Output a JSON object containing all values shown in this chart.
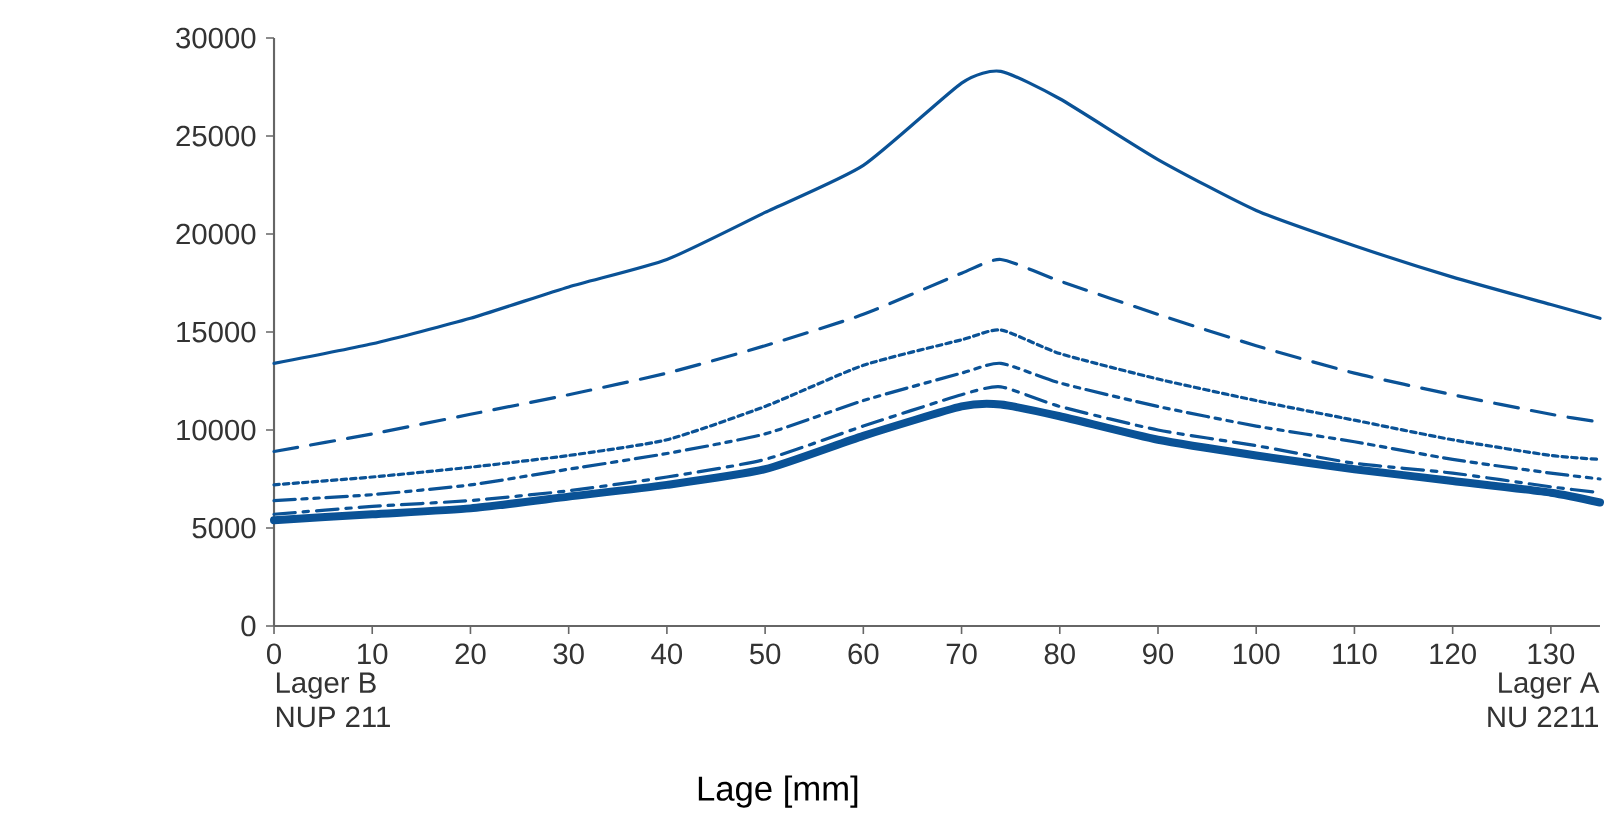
{
  "chart_data": {
    "type": "line",
    "xlabel": "Lage [mm]",
    "x": [
      0,
      10,
      20,
      30,
      40,
      50,
      60,
      70,
      74,
      80,
      90,
      100,
      110,
      120,
      130,
      135
    ],
    "series": [
      {
        "color": "#0a5296",
        "line_style": "solid",
        "values": [
          13400,
          14400,
          15700,
          17300,
          18700,
          21100,
          23500,
          27700,
          28300,
          26900,
          23800,
          21200,
          19400,
          17800,
          16400,
          15700
        ]
      },
      {
        "color": "#0a5296",
        "line_style": "dashed",
        "values": [
          8900,
          9800,
          10800,
          11800,
          12900,
          14300,
          15900,
          18000,
          18700,
          17600,
          15900,
          14300,
          12900,
          11800,
          10800,
          10400
        ]
      },
      {
        "color": "#0a5296",
        "line_style": "dotted",
        "values": [
          7200,
          7600,
          8100,
          8700,
          9500,
          11200,
          13300,
          14600,
          15100,
          13900,
          12600,
          11500,
          10500,
          9500,
          8700,
          8500
        ]
      },
      {
        "color": "#0a5296",
        "line_style": "dashdotdotted",
        "values": [
          6400,
          6700,
          7200,
          8000,
          8800,
          9800,
          11500,
          12900,
          13400,
          12400,
          11200,
          10200,
          9400,
          8500,
          7800,
          7500
        ]
      },
      {
        "color": "#0a5296",
        "line_style": "dashdotted",
        "values": [
          5700,
          6100,
          6400,
          6900,
          7600,
          8500,
          10200,
          11800,
          12200,
          11200,
          10000,
          9200,
          8300,
          7800,
          7100,
          6800
        ]
      },
      {
        "color": "#0a5296",
        "line_style": "solid",
        "values": [
          5400,
          5700,
          6000,
          6600,
          7200,
          8000,
          9700,
          11200,
          11300,
          10700,
          9500,
          8700,
          8000,
          7400,
          6800,
          6300
        ]
      }
    ],
    "xlim": [
      0,
      135
    ],
    "xticks": [
      0,
      10,
      20,
      30,
      40,
      50,
      60,
      70,
      80,
      90,
      100,
      110,
      120,
      130
    ],
    "ylim": [
      0,
      30000
    ],
    "yticks": [
      0,
      5000,
      10000,
      15000,
      20000,
      25000,
      30000
    ],
    "annotations": [
      "Lager B",
      "NUP 211",
      "Lager A",
      "NU 2211"
    ],
    "marker": "none"
  }
}
